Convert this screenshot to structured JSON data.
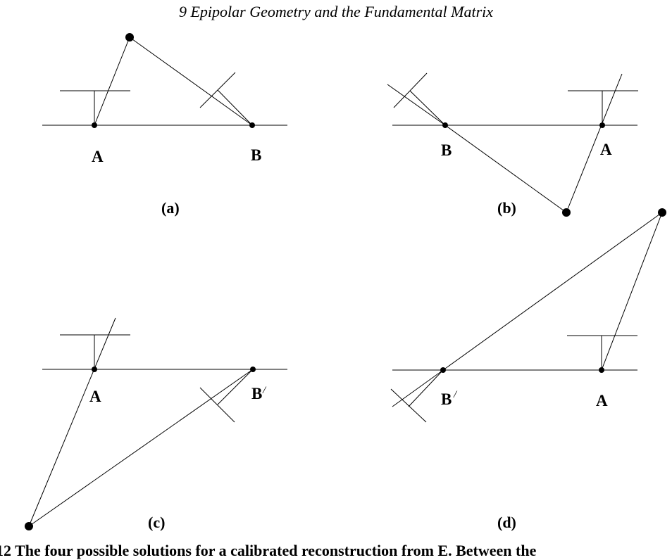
{
  "header": "9  Epipolar Geometry and the Fundamental Matrix",
  "panels": {
    "a": {
      "caption": "(a)",
      "label_camera": "A",
      "label_point": "B"
    },
    "b": {
      "caption": "(b)",
      "label_camera": "A",
      "label_point": "B"
    },
    "c": {
      "caption": "(c)",
      "label_camera": "A",
      "label_point": "B",
      "label_prime": "/"
    },
    "d": {
      "caption": "(d)",
      "label_camera": "A",
      "label_point": "B",
      "label_prime": "/"
    }
  },
  "figure_caption": "12  The four possible solutions for a calibrated reconstruction from E.  Between the"
}
